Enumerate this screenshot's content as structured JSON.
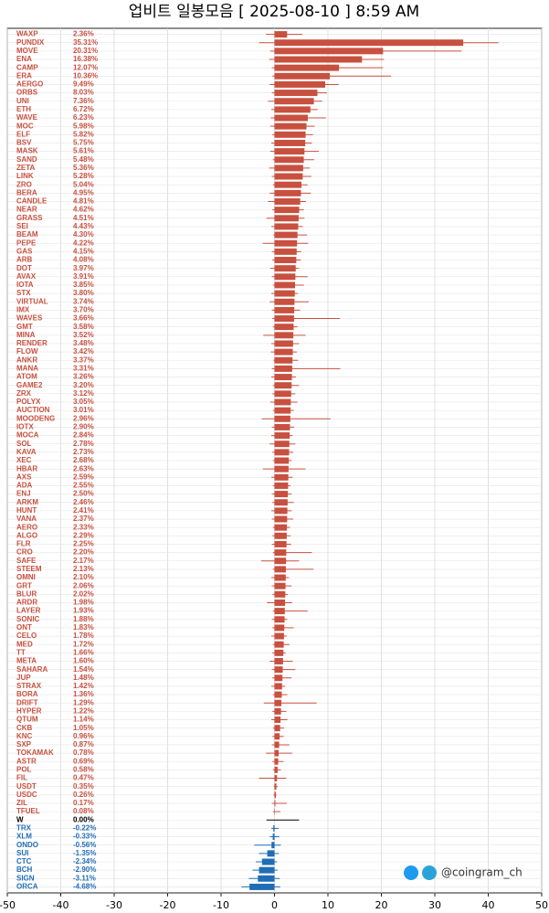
{
  "chart_data": {
    "type": "candlebar",
    "title": "업비트 일봉모음 [ 2025-08-10 ]  8:59 AM",
    "watermark": "@coingram_ch",
    "categories": [
      "WAXP",
      "PUNDIX",
      "MOVE",
      "ENA",
      "CAMP",
      "ERA",
      "AERGO",
      "ORBS",
      "UNI",
      "ETH",
      "WAVE",
      "MOC",
      "ELF",
      "BSV",
      "MASK",
      "SAND",
      "ZETA",
      "LINK",
      "ZRO",
      "BERA",
      "CANDLE",
      "NEAR",
      "GRASS",
      "SEI",
      "BEAM",
      "PEPE",
      "GAS",
      "ARB",
      "DOT",
      "AVAX",
      "IOTA",
      "STX",
      "VIRTUAL",
      "IMX",
      "WAVES",
      "GMT",
      "MINA",
      "RENDER",
      "FLOW",
      "ANKR",
      "MANA",
      "ATOM",
      "GAME2",
      "ZRX",
      "POLYX",
      "AUCTION",
      "MOODENG",
      "IOTX",
      "MOCA",
      "SOL",
      "KAVA",
      "XEC",
      "HBAR",
      "AXS",
      "ADA",
      "ENJ",
      "ARKM",
      "HUNT",
      "VANA",
      "AERO",
      "ALGO",
      "FLR",
      "CRO",
      "SAFE",
      "STEEM",
      "OMNI",
      "GRT",
      "BLUR",
      "ARDR",
      "LAYER",
      "SONIC",
      "ONT",
      "CELO",
      "MED",
      "TT",
      "META",
      "SAHARA",
      "JUP",
      "STRAX",
      "BORA",
      "DRIFT",
      "HYPER",
      "QTUM",
      "CKB",
      "KNC",
      "SXP",
      "TOKAMAK",
      "ASTR",
      "POL",
      "FIL",
      "USDT",
      "USDC",
      "ZIL",
      "TFUEL",
      "W",
      "TRX",
      "XLM",
      "ONDO",
      "SUI",
      "CTC",
      "BCH",
      "SIGN",
      "ORCA"
    ],
    "values": [
      2.36,
      35.31,
      20.31,
      16.38,
      12.07,
      10.36,
      9.49,
      8.03,
      7.36,
      6.72,
      6.23,
      5.98,
      5.82,
      5.75,
      5.61,
      5.48,
      5.36,
      5.28,
      5.04,
      4.95,
      4.81,
      4.62,
      4.51,
      4.43,
      4.3,
      4.22,
      4.15,
      4.08,
      3.97,
      3.91,
      3.85,
      3.8,
      3.74,
      3.7,
      3.66,
      3.58,
      3.52,
      3.48,
      3.42,
      3.37,
      3.31,
      3.26,
      3.2,
      3.12,
      3.05,
      3.01,
      2.96,
      2.9,
      2.84,
      2.78,
      2.73,
      2.68,
      2.63,
      2.59,
      2.55,
      2.5,
      2.46,
      2.41,
      2.37,
      2.33,
      2.29,
      2.25,
      2.2,
      2.17,
      2.13,
      2.1,
      2.06,
      2.02,
      1.98,
      1.93,
      1.88,
      1.83,
      1.78,
      1.72,
      1.66,
      1.6,
      1.54,
      1.48,
      1.42,
      1.36,
      1.29,
      1.22,
      1.14,
      1.05,
      0.96,
      0.87,
      0.78,
      0.69,
      0.58,
      0.47,
      0.35,
      0.26,
      0.17,
      0.08,
      0,
      -0.22,
      -0.33,
      -0.56,
      -1.35,
      -2.34,
      -2.9,
      -3.11,
      -4.68
    ],
    "value_labels": [
      "2.36%",
      "35.31%",
      "20.31%",
      "16.38%",
      "12.07%",
      "10.36%",
      "9.49%",
      "8.03%",
      "7.36%",
      "6.72%",
      "6.23%",
      "5.98%",
      "5.82%",
      "5.75%",
      "5.61%",
      "5.48%",
      "5.36%",
      "5.28%",
      "5.04%",
      "4.95%",
      "4.81%",
      "4.62%",
      "4.51%",
      "4.43%",
      "4.30%",
      "4.22%",
      "4.15%",
      "4.08%",
      "3.97%",
      "3.91%",
      "3.85%",
      "3.80%",
      "3.74%",
      "3.70%",
      "3.66%",
      "3.58%",
      "3.52%",
      "3.48%",
      "3.42%",
      "3.37%",
      "3.31%",
      "3.26%",
      "3.20%",
      "3.12%",
      "3.05%",
      "3.01%",
      "2.96%",
      "2.90%",
      "2.84%",
      "2.78%",
      "2.73%",
      "2.68%",
      "2.63%",
      "2.59%",
      "2.55%",
      "2.50%",
      "2.46%",
      "2.41%",
      "2.37%",
      "2.33%",
      "2.29%",
      "2.25%",
      "2.20%",
      "2.17%",
      "2.13%",
      "2.10%",
      "2.06%",
      "2.02%",
      "1.98%",
      "1.93%",
      "1.88%",
      "1.83%",
      "1.78%",
      "1.72%",
      "1.66%",
      "1.60%",
      "1.54%",
      "1.48%",
      "1.42%",
      "1.36%",
      "1.29%",
      "1.22%",
      "1.14%",
      "1.05%",
      "0.96%",
      "0.87%",
      "0.78%",
      "0.69%",
      "0.58%",
      "0.47%",
      "0.35%",
      "0.26%",
      "0.17%",
      "0.08%",
      "0.00%",
      "-0.22%",
      "-0.33%",
      "-0.56%",
      "-1.35%",
      "-2.34%",
      "-2.90%",
      "-3.11%",
      "-4.68%"
    ],
    "lows": [
      -1.6,
      -2.9,
      -0.8,
      -1.0,
      -0.5,
      -0.4,
      -0.9,
      -0.5,
      -1.2,
      -0.6,
      -0.7,
      -0.8,
      -0.4,
      -0.6,
      -0.8,
      -0.3,
      -1.0,
      -0.5,
      -0.3,
      -0.9,
      -1.2,
      -0.4,
      -1.5,
      -0.6,
      -0.2,
      -2.2,
      -0.5,
      -0.4,
      -0.8,
      -0.5,
      -0.3,
      -0.6,
      -0.9,
      -0.5,
      -0.4,
      -0.3,
      -2.1,
      -0.6,
      -0.7,
      -0.2,
      -0.5,
      -0.6,
      -0.3,
      -0.4,
      -0.8,
      -0.3,
      -2.4,
      -0.5,
      -0.6,
      -0.9,
      -0.4,
      -0.3,
      -2.2,
      -0.6,
      -0.3,
      -0.5,
      -0.4,
      -0.6,
      -0.5,
      -0.3,
      -0.4,
      -0.5,
      -0.3,
      -2.5,
      -0.3,
      -0.6,
      -0.5,
      -0.4,
      -1.4,
      -0.3,
      -0.5,
      -0.4,
      -0.6,
      -0.3,
      -0.4,
      -0.9,
      -0.5,
      -0.4,
      -0.6,
      -0.3,
      -2.0,
      -0.4,
      -0.6,
      -0.3,
      -0.4,
      -0.5,
      -1.6,
      -0.4,
      -0.3,
      -2.9,
      -0.1,
      -0.2,
      -0.5,
      -0.3,
      -1.5,
      -0.6,
      -0.9,
      -3.8,
      -2.9,
      -3.5,
      -4.1,
      -4.8,
      -6.2
    ],
    "highs": [
      5.2,
      41.9,
      35.0,
      20.5,
      20.3,
      21.8,
      12.0,
      9.8,
      8.9,
      8.1,
      9.6,
      7.5,
      7.2,
      7.0,
      8.3,
      7.4,
      6.6,
      6.9,
      6.2,
      6.8,
      5.9,
      5.5,
      5.6,
      5.3,
      6.1,
      6.3,
      5.0,
      4.9,
      4.6,
      6.2,
      5.5,
      4.4,
      6.4,
      4.8,
      12.2,
      4.3,
      5.8,
      4.6,
      4.2,
      4.4,
      12.3,
      4.0,
      4.6,
      3.9,
      4.3,
      3.6,
      10.5,
      3.7,
      3.4,
      3.9,
      3.5,
      3.2,
      5.8,
      3.4,
      3.0,
      3.2,
      3.6,
      3.2,
      3.5,
      2.9,
      3.0,
      3.1,
      7.0,
      4.6,
      7.3,
      2.7,
      3.2,
      2.5,
      3.3,
      6.2,
      2.4,
      3.6,
      2.3,
      2.8,
      2.1,
      3.4,
      3.9,
      3.2,
      2.0,
      2.4,
      7.9,
      2.2,
      2.4,
      1.8,
      1.7,
      2.8,
      3.3,
      1.7,
      1.2,
      2.2,
      0.6,
      0.4,
      2.3,
      1.1,
      4.6,
      0.8,
      0.9,
      1.2,
      0.8,
      0.5,
      0.6,
      1.0,
      1.1
    ],
    "color_up": "#c8503f",
    "color_down": "#1f6db5",
    "color_flat": "#000000",
    "xlim": [
      -50,
      50
    ],
    "xticks": [
      -50,
      -40,
      -30,
      -20,
      -10,
      0,
      10,
      20,
      30,
      40,
      50
    ],
    "grid": true
  }
}
